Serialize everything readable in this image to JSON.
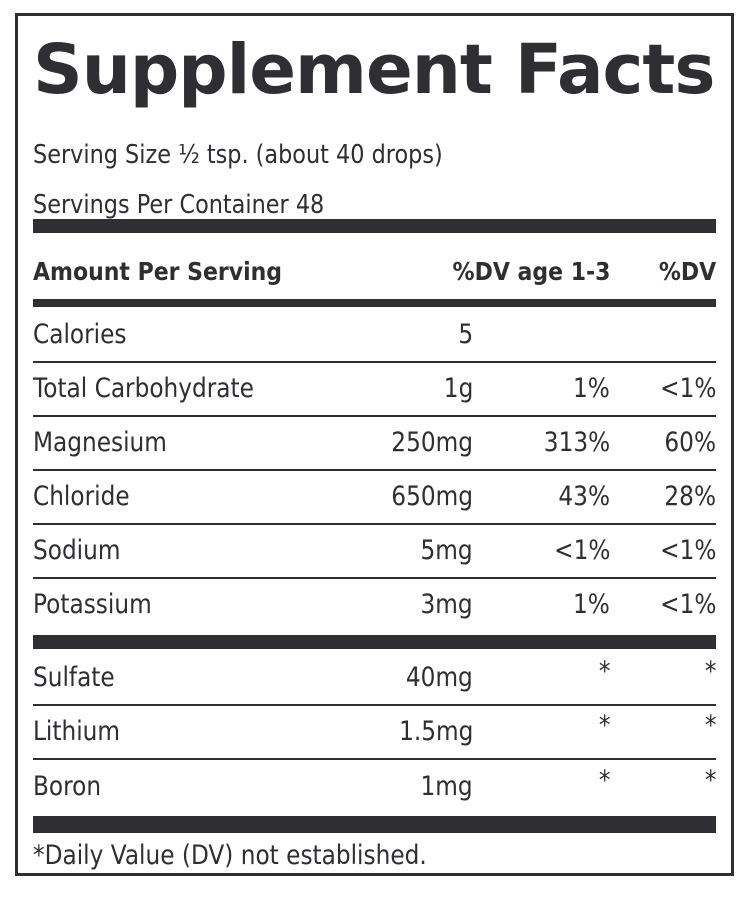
{
  "title": "Supplement Facts",
  "serving_size": "Serving Size ½ tsp. (about 40 drops)",
  "servings_per_container": "Servings Per Container 48",
  "header": {
    "amount": "Amount Per Serving",
    "dv_age": "%DV age 1-3",
    "dv": "%DV"
  },
  "rows_main": [
    {
      "name": "Calories",
      "amount": "5",
      "dv_age": "",
      "dv": ""
    },
    {
      "name": "Total Carbohydrate",
      "amount": "1g",
      "dv_age": "1%",
      "dv": "<1%"
    },
    {
      "name": "Magnesium",
      "amount": "250mg",
      "dv_age": "313%",
      "dv": "60%"
    },
    {
      "name": "Chloride",
      "amount": "650mg",
      "dv_age": "43%",
      "dv": "28%"
    },
    {
      "name": "Sodium",
      "amount": "5mg",
      "dv_age": "<1%",
      "dv": "<1%"
    },
    {
      "name": "Potassium",
      "amount": "3mg",
      "dv_age": "1%",
      "dv": "<1%"
    }
  ],
  "rows_other": [
    {
      "name": "Sulfate",
      "amount": "40mg",
      "dv_age": "*",
      "dv": "*"
    },
    {
      "name": "Lithium",
      "amount": "1.5mg",
      "dv_age": "*",
      "dv": "*"
    },
    {
      "name": "Boron",
      "amount": "1mg",
      "dv_age": "*",
      "dv": "*"
    }
  ],
  "footnote": "*Daily Value (DV) not established."
}
